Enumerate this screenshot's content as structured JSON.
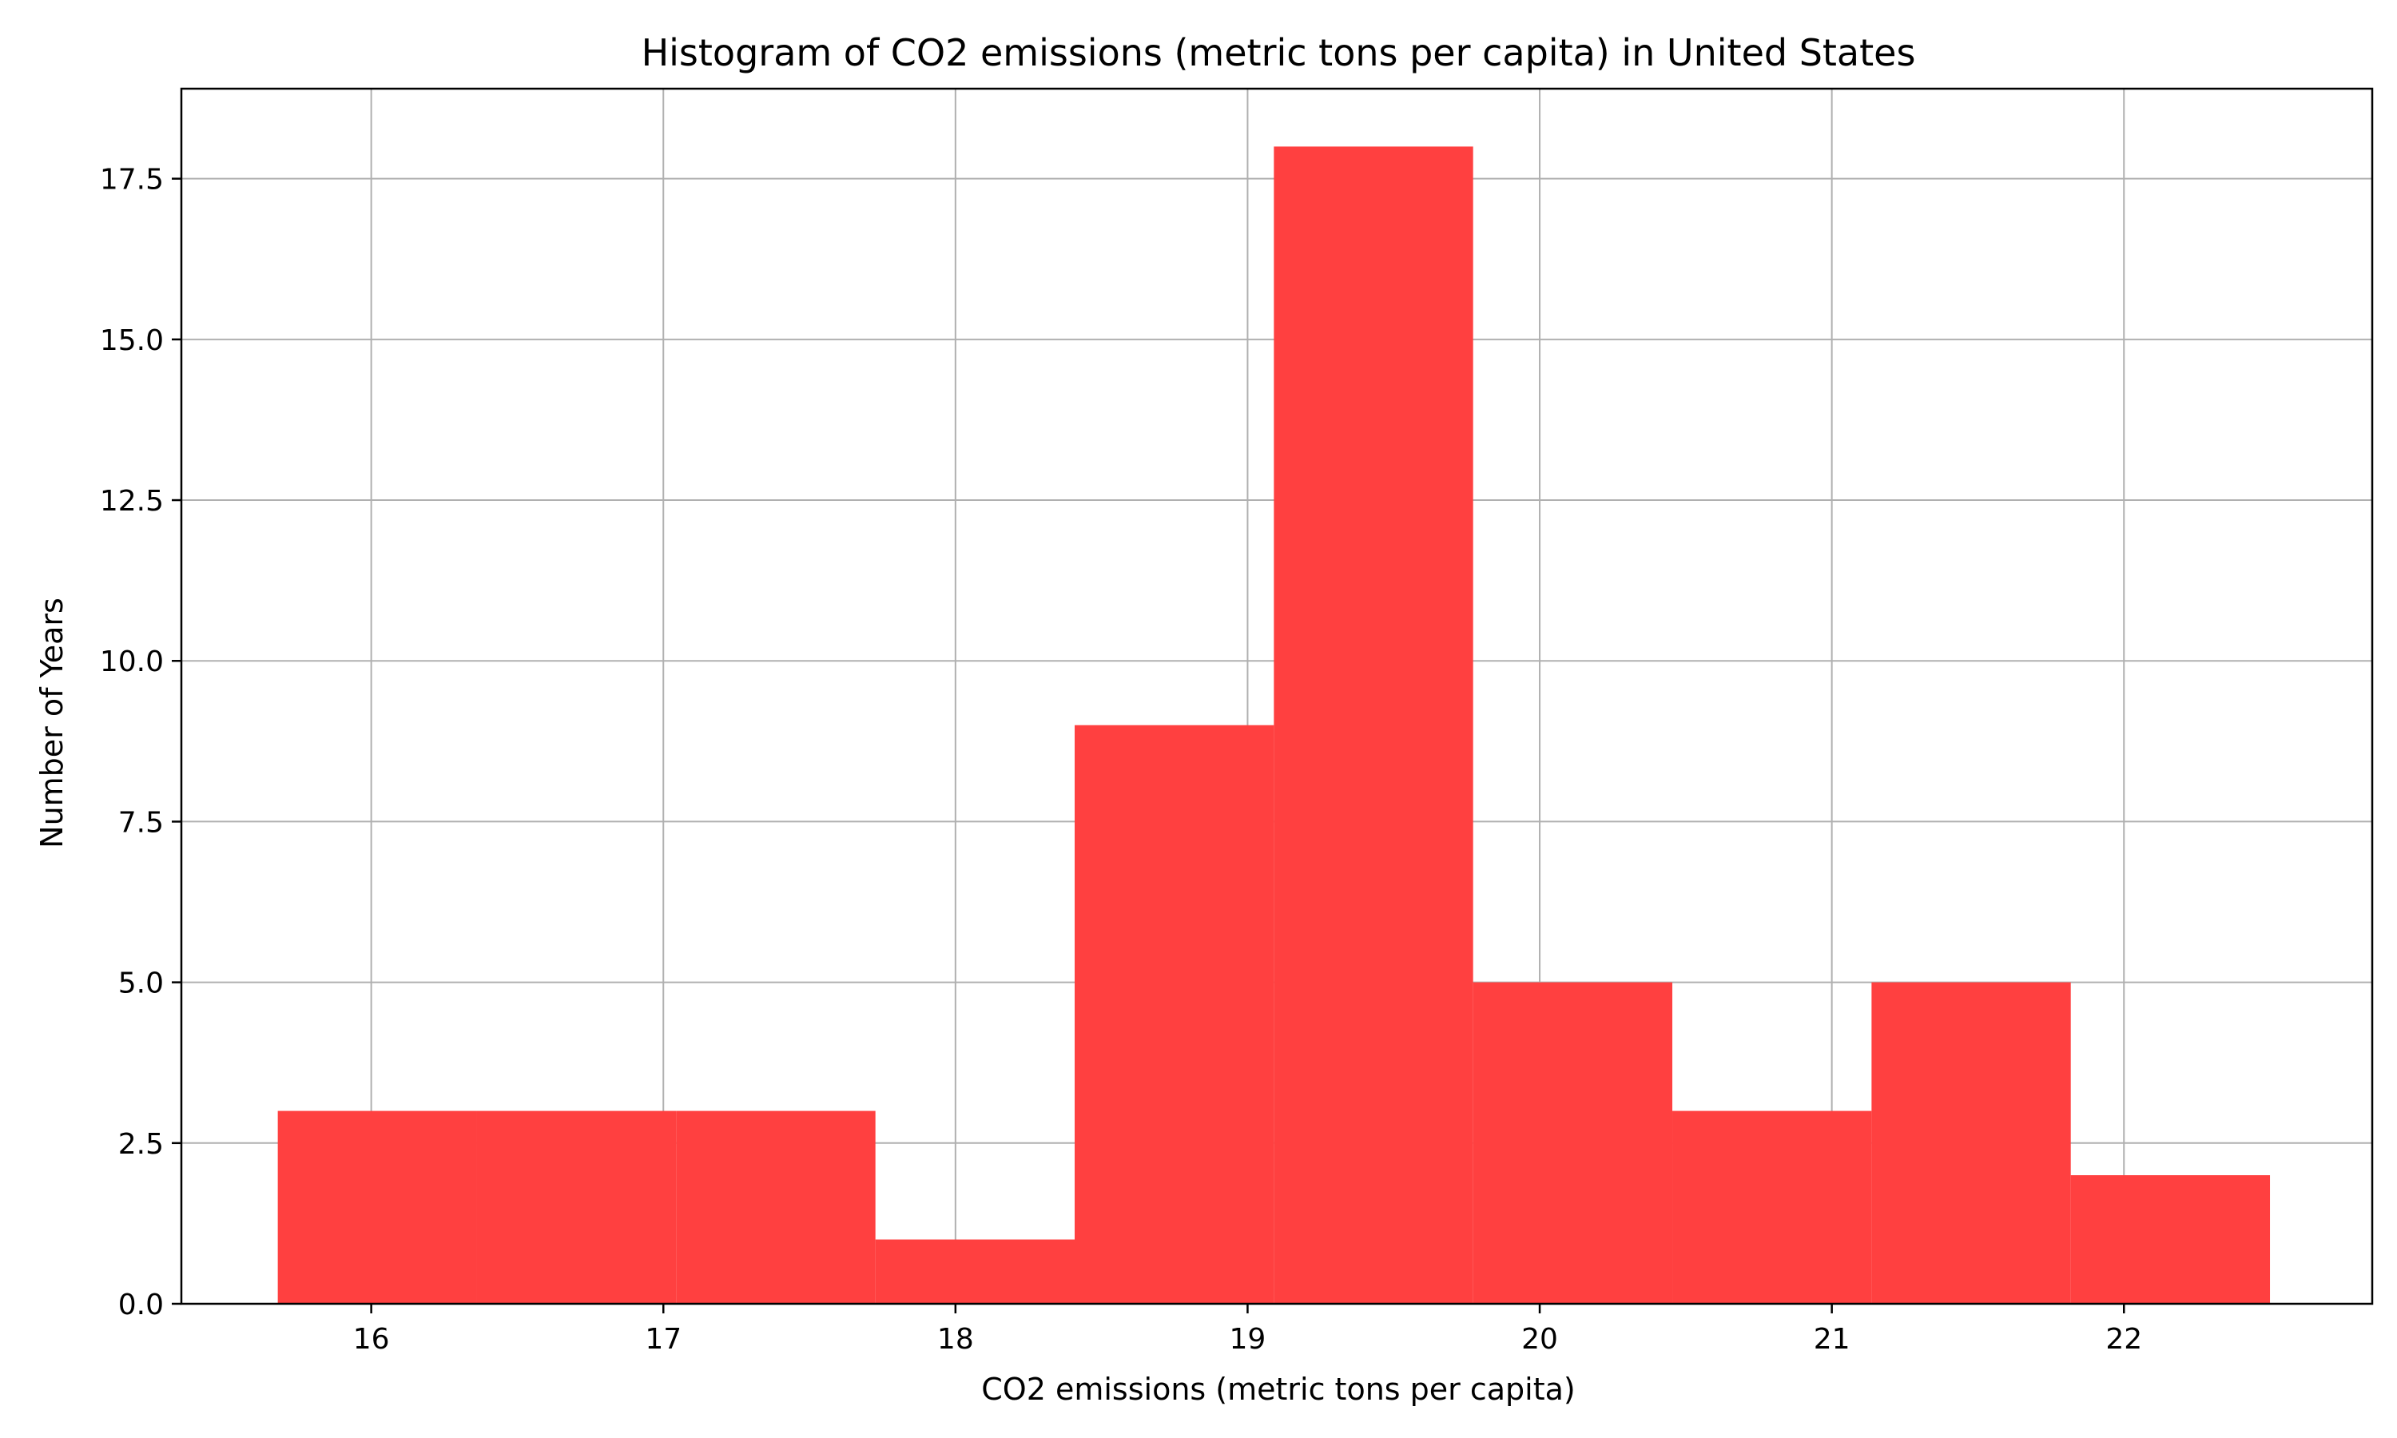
{
  "chart_data": {
    "type": "bar",
    "subtype": "histogram",
    "title": "Histogram of CO2 emissions (metric tons per capita) in United States",
    "xlabel": "CO2 emissions (metric tons per capita)",
    "ylabel": "Number of Years",
    "bin_edges": [
      15.68,
      16.362,
      17.044,
      17.726,
      18.408,
      19.09,
      19.772,
      20.454,
      21.136,
      21.818,
      22.5
    ],
    "counts": [
      3,
      3,
      3,
      1,
      9,
      18,
      5,
      3,
      5,
      2
    ],
    "xlim": [
      15.35,
      22.85
    ],
    "ylim": [
      0,
      18.9
    ],
    "xticks": [
      16,
      17,
      18,
      19,
      20,
      21,
      22
    ],
    "xtick_labels": [
      "16",
      "17",
      "18",
      "19",
      "20",
      "21",
      "22"
    ],
    "yticks": [
      0,
      2.5,
      5,
      7.5,
      10,
      12.5,
      15,
      17.5
    ],
    "ytick_labels": [
      "0.0",
      "2.5",
      "5.0",
      "7.5",
      "10.0",
      "12.5",
      "15.0",
      "17.5"
    ],
    "grid": true,
    "bar_color": "#ff4040",
    "grid_color": "#b0b0b0"
  }
}
